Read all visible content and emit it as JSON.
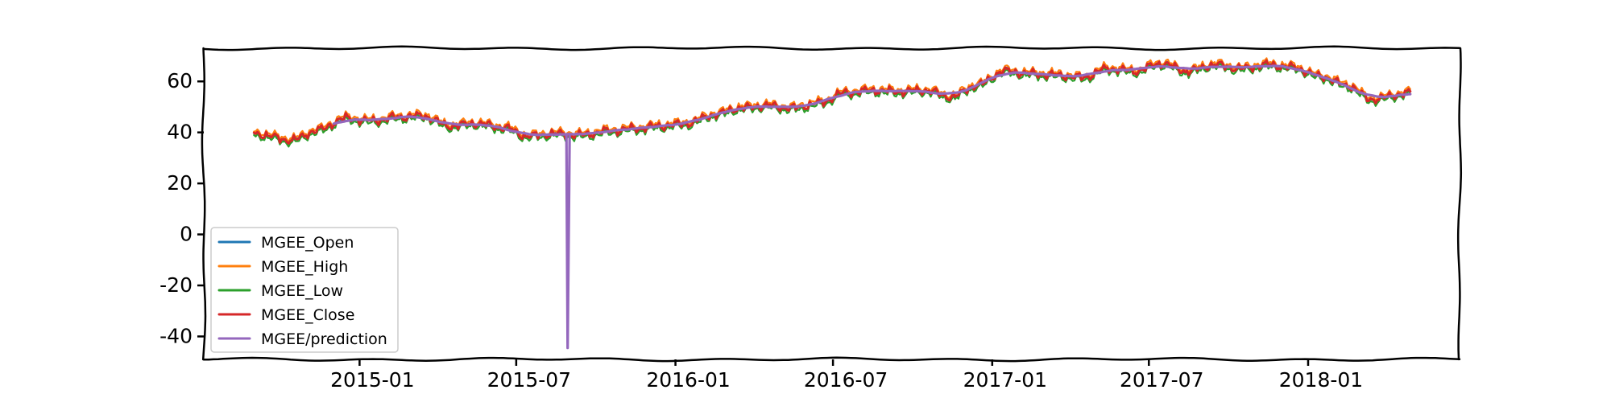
{
  "chart_data": {
    "type": "line",
    "title": "",
    "xlabel": "",
    "ylabel": "",
    "x_start": "2014-09-01",
    "x_end": "2018-04-30",
    "xlim": [
      "2014-07-05",
      "2018-06-25"
    ],
    "ylim": [
      -49,
      73
    ],
    "x_ticks": [
      "2015-01",
      "2015-07",
      "2016-01",
      "2016-07",
      "2017-01",
      "2017-07",
      "2018-01"
    ],
    "y_ticks": [
      60,
      40,
      20,
      0,
      -20,
      -40
    ],
    "grid": false,
    "legend_position": "lower-left",
    "anchors": {
      "x": [
        "2014-09-01",
        "2014-10-15",
        "2014-11-15",
        "2014-12-15",
        "2015-01-15",
        "2015-02-15",
        "2015-03-15",
        "2015-04-15",
        "2015-05-15",
        "2015-06-15",
        "2015-07-15",
        "2015-08-15",
        "2015-09-15",
        "2015-10-15",
        "2015-11-15",
        "2015-12-15",
        "2016-01-15",
        "2016-02-15",
        "2016-03-15",
        "2016-04-15",
        "2016-05-15",
        "2016-06-15",
        "2016-07-15",
        "2016-08-15",
        "2016-09-15",
        "2016-10-15",
        "2016-11-15",
        "2016-12-15",
        "2017-01-15",
        "2017-02-15",
        "2017-03-15",
        "2017-04-15",
        "2017-05-15",
        "2017-06-15",
        "2017-07-15",
        "2017-08-15",
        "2017-09-15",
        "2017-10-15",
        "2017-11-15",
        "2017-12-15",
        "2018-01-15",
        "2018-02-15",
        "2018-03-15",
        "2018-04-30"
      ],
      "y": [
        39.5,
        37.0,
        41.0,
        45.5,
        44.5,
        46.0,
        46.5,
        42.5,
        43.5,
        42.0,
        38.5,
        39.5,
        39.0,
        40.5,
        41.5,
        42.5,
        43.5,
        47.0,
        49.5,
        50.5,
        49.5,
        51.5,
        55.5,
        56.5,
        56.0,
        56.5,
        54.0,
        58.5,
        64.0,
        63.0,
        62.5,
        61.5,
        65.0,
        64.0,
        67.0,
        64.0,
        66.5,
        65.0,
        66.5,
        65.5,
        62.0,
        58.5,
        53.0,
        55.5
      ]
    },
    "prediction_spike": {
      "x": "2015-08-28",
      "y": -44.5
    },
    "series": [
      {
        "name": "MGEE_Open",
        "color": "#1f77b4"
      },
      {
        "name": "MGEE_High",
        "color": "#ff7f0e"
      },
      {
        "name": "MGEE_Low",
        "color": "#2ca02c"
      },
      {
        "name": "MGEE_Close",
        "color": "#d62728"
      },
      {
        "name": "MGEE/prediction",
        "color": "#9467bd"
      }
    ]
  }
}
